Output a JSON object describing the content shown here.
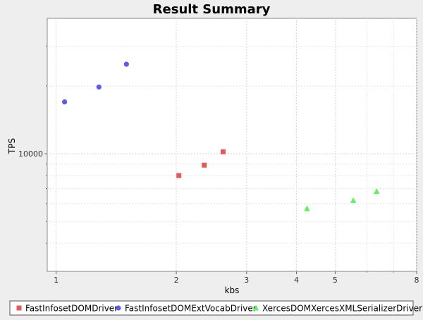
{
  "chart_data": {
    "type": "scatter",
    "title": "Result Summary",
    "xlabel": "kbs",
    "ylabel": "TPS",
    "x_scale": "log",
    "y_scale": "log",
    "xlim": [
      0.95,
      8
    ],
    "ylim": [
      3000,
      40000
    ],
    "x_ticks": [
      1,
      2,
      3,
      4,
      5,
      8
    ],
    "y_ticks": [
      10000
    ],
    "y_tick_labels": [
      "10000"
    ],
    "grid": true,
    "legend_position": "bottom",
    "series": [
      {
        "name": "FastInfosetDOMDriver",
        "marker": "square",
        "color": "#e45959",
        "points": [
          [
            2.03,
            8000
          ],
          [
            2.35,
            8900
          ],
          [
            2.62,
            10200
          ]
        ]
      },
      {
        "name": "FastInfosetDOMExtVocabDriver",
        "marker": "circle",
        "color": "#5b5bee",
        "points": [
          [
            1.05,
            17000
          ],
          [
            1.28,
            19800
          ],
          [
            1.5,
            25000
          ]
        ]
      },
      {
        "name": "XercesDOMXercesXMLSerializerDriver",
        "marker": "triangle",
        "color": "#5ef25e",
        "points": [
          [
            4.25,
            5700
          ],
          [
            5.55,
            6200
          ],
          [
            6.35,
            6800
          ]
        ]
      }
    ]
  }
}
